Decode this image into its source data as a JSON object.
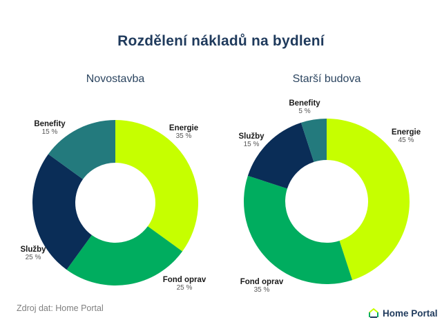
{
  "title": "Rozdělení nákladů na bydlení",
  "charts": [
    {
      "subtitle": "Novostavba",
      "labels": {
        "energie": {
          "name": "Energie",
          "pct": "35 %"
        },
        "fond": {
          "name": "Fond oprav",
          "pct": "25 %"
        },
        "sluzby": {
          "name": "Služby",
          "pct": "25 %"
        },
        "benefity": {
          "name": "Benefity",
          "pct": "15 %"
        }
      }
    },
    {
      "subtitle": "Starší budova",
      "labels": {
        "energie": {
          "name": "Energie",
          "pct": "45 %"
        },
        "fond": {
          "name": "Fond oprav",
          "pct": "35 %"
        },
        "sluzby": {
          "name": "Služby",
          "pct": "15 %"
        },
        "benefity": {
          "name": "Benefity",
          "pct": "5 %"
        }
      }
    }
  ],
  "footer": {
    "source": "Zdroj dat: Home Portal",
    "brand": "Home Portal"
  },
  "colors": {
    "Energie": "#c6ff00",
    "Fond oprav": "#00ad5f",
    "Služby": "#0a2d57",
    "Benefity": "#237a7d",
    "title": "#1f3a5c"
  },
  "chart_data": [
    {
      "type": "pie",
      "variant": "donut",
      "title": "Novostavba",
      "categories": [
        "Energie",
        "Fond oprav",
        "Služby",
        "Benefity"
      ],
      "values": [
        35,
        25,
        25,
        15
      ],
      "unit": "%",
      "colors": [
        "#c6ff00",
        "#00ad5f",
        "#0a2d57",
        "#237a7d"
      ]
    },
    {
      "type": "pie",
      "variant": "donut",
      "title": "Starší budova",
      "categories": [
        "Energie",
        "Fond oprav",
        "Služby",
        "Benefity"
      ],
      "values": [
        45,
        35,
        15,
        5
      ],
      "unit": "%",
      "colors": [
        "#c6ff00",
        "#00ad5f",
        "#0a2d57",
        "#237a7d"
      ]
    }
  ]
}
